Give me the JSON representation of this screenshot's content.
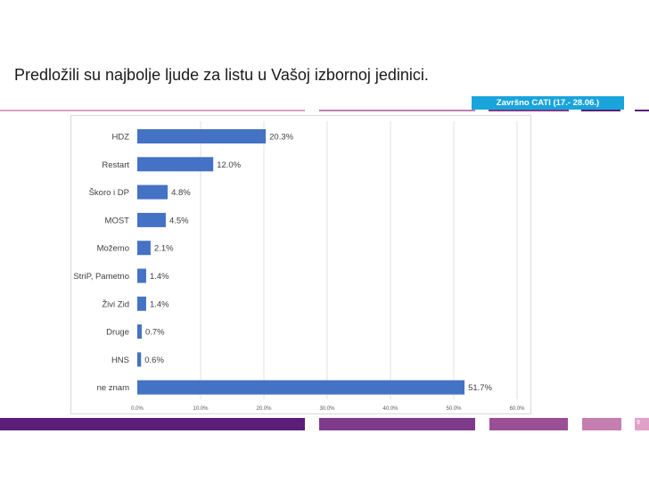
{
  "slide": {
    "title": "Predložili su najbolje ljude za listu u Vašoj izbornoj jedinici.",
    "badge": "Završno CATI (17.- 28.06.)",
    "page_number": "9"
  },
  "colors": {
    "bar": "#4472c4",
    "badge": "#19a4dc",
    "gridline": "#e0e0e0",
    "purple_dark": "#5b1f78",
    "purple_mid": "#7f3a8c",
    "purple_light": "#c47eb0",
    "pink_line": "#e0a0c8"
  },
  "chart_data": {
    "type": "bar",
    "orientation": "horizontal",
    "categories": [
      "HDZ",
      "Restart",
      "Škoro i DP",
      "MOST",
      "Možemo",
      "StriP, Pametno",
      "Živi Zid",
      "Druge",
      "HNS",
      "ne znam"
    ],
    "values": [
      20.3,
      12.0,
      4.8,
      4.5,
      2.1,
      1.4,
      1.4,
      0.7,
      0.6,
      51.7
    ],
    "value_labels": [
      "20.3%",
      "12.0%",
      "4.8%",
      "4.5%",
      "2.1%",
      "1.4%",
      "1.4%",
      "0.7%",
      "0.6%",
      "51.7%"
    ],
    "xlim": [
      0,
      60
    ],
    "x_ticks": [
      0,
      10,
      20,
      30,
      40,
      50,
      60
    ],
    "x_tick_labels": [
      "0.0%",
      "10.0%",
      "20.0%",
      "30.0%",
      "40.0%",
      "50.0%",
      "60.0%"
    ],
    "grid": true,
    "legend": "none"
  }
}
